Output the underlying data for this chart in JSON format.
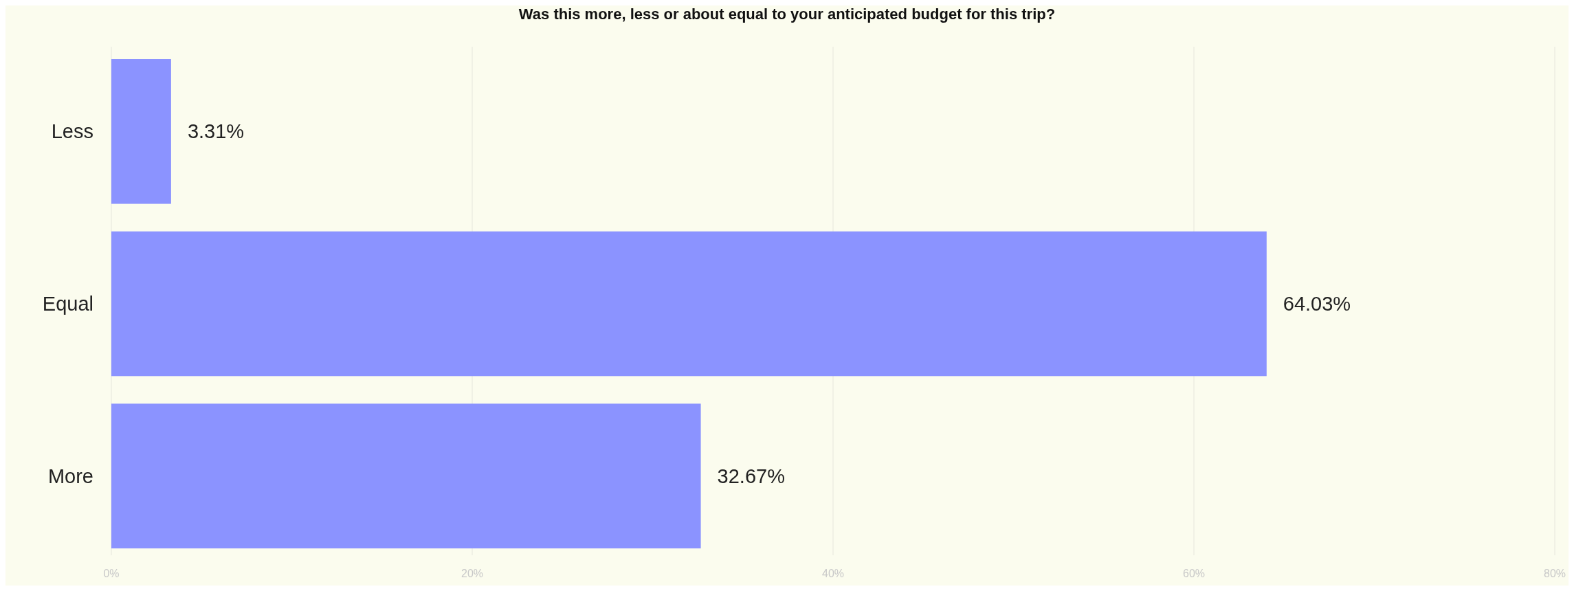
{
  "chart_data": {
    "type": "bar",
    "orientation": "horizontal",
    "title": "Was this more, less or about equal to your anticipated budget for this trip?",
    "categories": [
      "Less",
      "Equal",
      "More"
    ],
    "values": [
      3.31,
      64.03,
      32.67
    ],
    "value_labels": [
      "3.31%",
      "64.03%",
      "32.67%"
    ],
    "color": "#8b93ff",
    "xlim": [
      0,
      80
    ],
    "xticks": [
      {
        "value": 0,
        "label": "0%"
      },
      {
        "value": 20,
        "label": "20%"
      },
      {
        "value": 40,
        "label": "40%"
      },
      {
        "value": 60,
        "label": "60%"
      },
      {
        "value": 80,
        "label": "80%"
      }
    ],
    "grid": "x"
  }
}
